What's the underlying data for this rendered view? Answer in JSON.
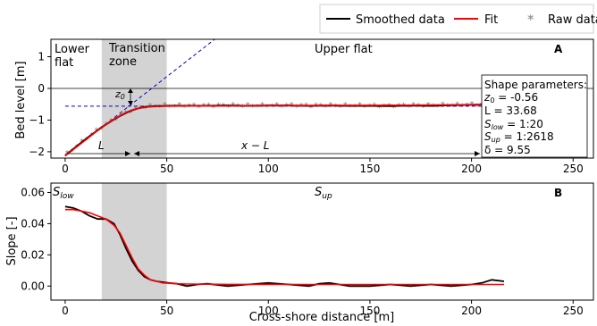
{
  "legend": {
    "placement": "top-right, above panels",
    "entries": [
      {
        "label": "Smoothed data",
        "color": "#000000",
        "marker": "line"
      },
      {
        "label": "Fit",
        "color": "#ff0000",
        "marker": "line"
      },
      {
        "label": "Raw data",
        "color": "#7f7f7f",
        "marker": "star",
        "symbol": "*"
      }
    ]
  },
  "colors": {
    "smoothed": "#000000",
    "fit": "#ff0000",
    "raw": "#7f7f7f",
    "guide": "#0000cc",
    "shade": "#d3d3d3"
  },
  "chart_data": [
    {
      "type": "line",
      "panel_label": "A",
      "title": "",
      "xlabel": "",
      "ylabel": "Bed level [m]",
      "xlim": [
        -7,
        260
      ],
      "ylim": [
        -2.2,
        1.55
      ],
      "xticks": [
        0,
        50,
        100,
        150,
        200,
        250
      ],
      "yticks": [
        1,
        0,
        -1,
        -2
      ],
      "grid": false,
      "shaded_region": {
        "x0": 18,
        "x1": 50,
        "label": "Transition zone"
      },
      "zone_labels": [
        {
          "text": "Lower flat",
          "x": 0,
          "y": 1.3
        },
        {
          "text": "Transition zone",
          "x": 27,
          "y": 1.3
        },
        {
          "text": "Upper flat",
          "x": 130,
          "y": 1.3
        }
      ],
      "shape_parameters": {
        "title": "Shape parameters:",
        "z0": "z0 = -0.56",
        "L": "L  = 33.68",
        "S_low": "Slow = 1:20",
        "S_up": "Sup = 1:2618",
        "delta": "δ = 9.55"
      },
      "annotations": {
        "z0_label": "z0",
        "L_label": "L",
        "x_minus_L_label": "x − L",
        "L_arrow": [
          0,
          33.68
        ],
        "x_minus_L_arrow": [
          33.68,
          218
        ]
      },
      "reference_lines": {
        "zero_level": 0,
        "z0_level": -0.56,
        "lower_slope": 0.05
      },
      "series": [
        {
          "name": "Smoothed data",
          "x": [
            0,
            3,
            6,
            9,
            12,
            15,
            18,
            21,
            24,
            27,
            30,
            33,
            36,
            39,
            42,
            45,
            48,
            50,
            55,
            60,
            70,
            80,
            90,
            100,
            110,
            120,
            130,
            140,
            150,
            160,
            170,
            180,
            190,
            200,
            210,
            216
          ],
          "y": [
            -2.12,
            -1.97,
            -1.81,
            -1.66,
            -1.51,
            -1.37,
            -1.23,
            -1.1,
            -0.98,
            -0.87,
            -0.77,
            -0.69,
            -0.63,
            -0.59,
            -0.57,
            -0.56,
            -0.555,
            -0.55,
            -0.55,
            -0.55,
            -0.55,
            -0.54,
            -0.55,
            -0.54,
            -0.54,
            -0.55,
            -0.54,
            -0.55,
            -0.55,
            -0.56,
            -0.54,
            -0.55,
            -0.53,
            -0.52,
            -0.5,
            -0.49
          ]
        },
        {
          "name": "Fit",
          "x": [
            0,
            3,
            6,
            9,
            12,
            15,
            18,
            21,
            24,
            27,
            30,
            33,
            36,
            39,
            42,
            45,
            48,
            50,
            55,
            60,
            70,
            80,
            90,
            100,
            110,
            120,
            130,
            140,
            150,
            160,
            170,
            180,
            190,
            200,
            210,
            216
          ],
          "y": [
            -2.13,
            -1.98,
            -1.83,
            -1.68,
            -1.53,
            -1.38,
            -1.24,
            -1.1,
            -0.97,
            -0.86,
            -0.76,
            -0.68,
            -0.63,
            -0.6,
            -0.58,
            -0.57,
            -0.565,
            -0.56,
            -0.56,
            -0.555,
            -0.555,
            -0.55,
            -0.55,
            -0.545,
            -0.545,
            -0.54,
            -0.54,
            -0.535,
            -0.535,
            -0.53,
            -0.53,
            -0.525,
            -0.52,
            -0.52,
            -0.515,
            -0.51
          ]
        }
      ]
    },
    {
      "type": "line",
      "panel_label": "B",
      "title": "",
      "xlabel": "Cross-shore distance [m]",
      "ylabel": "Slope [-]",
      "xlim": [
        -7,
        260
      ],
      "ylim": [
        -0.009,
        0.066
      ],
      "xticks": [
        0,
        50,
        100,
        150,
        200,
        250
      ],
      "yticks": [
        0.06,
        0.04,
        0.02,
        0.0
      ],
      "ytick_labels": [
        "0.06",
        "0.04",
        "0.02",
        "0.00"
      ],
      "grid": false,
      "shaded_region": {
        "x0": 18,
        "x1": 50
      },
      "corner_labels": [
        {
          "text": "Slow",
          "position": "top-left"
        },
        {
          "text": "Sup",
          "x": 130
        }
      ],
      "series": [
        {
          "name": "Smoothed data",
          "x": [
            0,
            4,
            8,
            12,
            16,
            20,
            24,
            27,
            30,
            33,
            36,
            39,
            42,
            45,
            48,
            51,
            55,
            60,
            65,
            70,
            80,
            90,
            100,
            110,
            120,
            125,
            130,
            140,
            150,
            160,
            165,
            170,
            180,
            190,
            200,
            205,
            210,
            216
          ],
          "y": [
            0.051,
            0.05,
            0.048,
            0.045,
            0.043,
            0.043,
            0.04,
            0.033,
            0.024,
            0.016,
            0.01,
            0.006,
            0.004,
            0.003,
            0.0025,
            0.002,
            0.0015,
            0.0,
            0.001,
            0.0015,
            0.0,
            0.001,
            0.002,
            0.001,
            0.0,
            0.0015,
            0.002,
            0.0,
            0.0,
            0.001,
            0.0005,
            0.0,
            0.001,
            0.0,
            0.001,
            0.002,
            0.004,
            0.003
          ]
        },
        {
          "name": "Fit",
          "x": [
            0,
            4,
            8,
            12,
            16,
            20,
            24,
            27,
            30,
            33,
            36,
            39,
            42,
            45,
            48,
            51,
            55,
            60,
            70,
            80,
            100,
            120,
            140,
            160,
            180,
            200,
            216
          ],
          "y": [
            0.049,
            0.049,
            0.048,
            0.047,
            0.045,
            0.043,
            0.039,
            0.034,
            0.026,
            0.018,
            0.011,
            0.007,
            0.004,
            0.003,
            0.002,
            0.0018,
            0.0015,
            0.0013,
            0.0012,
            0.0011,
            0.0011,
            0.001,
            0.001,
            0.001,
            0.001,
            0.001,
            0.001
          ]
        }
      ]
    }
  ]
}
